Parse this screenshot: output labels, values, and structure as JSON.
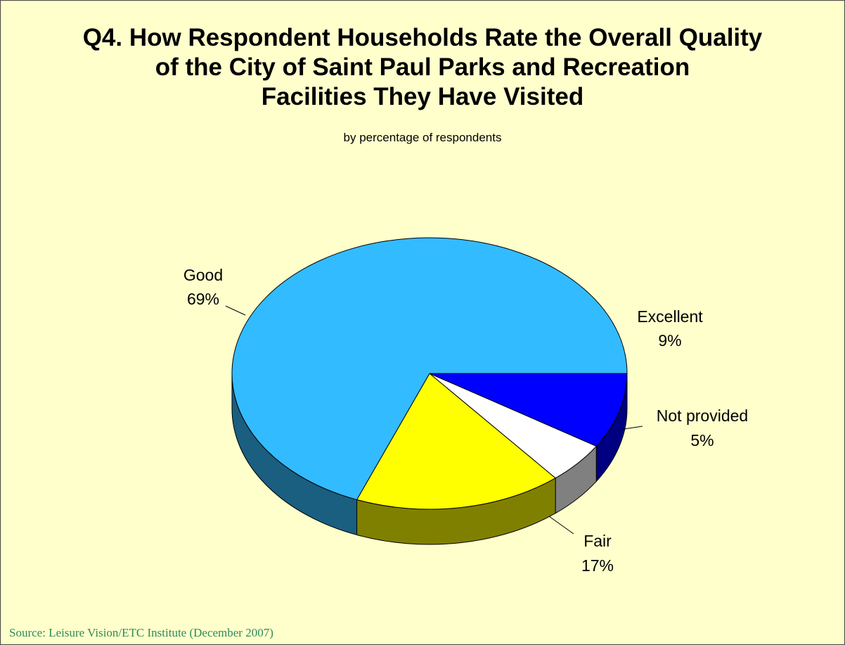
{
  "title_lines": [
    "Q4. How Respondent Households Rate the Overall Quality",
    "of the City of Saint Paul Parks and Recreation",
    "Facilities They Have Visited"
  ],
  "subtitle": "by percentage of respondents",
  "source": "Source:  Leisure Vision/ETC Institute (December 2007)",
  "colors": {
    "background": "#ffffcc",
    "excellent": "#0000ff",
    "not_provided": "#ffffff",
    "fair": "#ffff00",
    "good": "#33bbff"
  },
  "chart_data": {
    "type": "pie",
    "style": "3d",
    "slices": [
      {
        "label": "Excellent",
        "value": 9,
        "display": "9%",
        "color": "#0000ff"
      },
      {
        "label": "Not provided",
        "value": 5,
        "display": "5%",
        "color": "#ffffff"
      },
      {
        "label": "Fair",
        "value": 17,
        "display": "17%",
        "color": "#ffff00"
      },
      {
        "label": "Good",
        "value": 69,
        "display": "69%",
        "color": "#33bbff"
      }
    ]
  }
}
